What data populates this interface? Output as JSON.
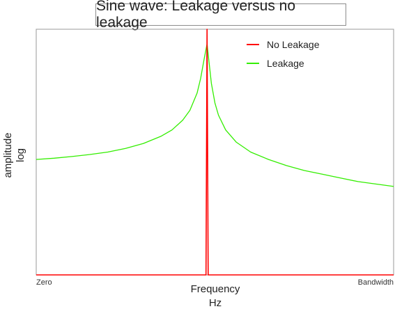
{
  "chart_data": {
    "type": "line",
    "title": "Sine wave: Leakage versus no leakage",
    "xlabel": "Frequency",
    "xlabel_unit": "Hz",
    "ylabel": "amplitude",
    "ylabel_scale": "log",
    "x_tick_labels": [
      "Zero",
      "Bandwidth"
    ],
    "xlim": [
      0,
      1
    ],
    "ylim": [
      0,
      1
    ],
    "yscale": "log",
    "grid": false,
    "legend_position": "top-right",
    "series": [
      {
        "name": "No Leakage",
        "color": "#ff0000",
        "x": [
          0,
          0.475,
          0.478,
          0.481,
          1
        ],
        "y": [
          0,
          0,
          1.0,
          0,
          0
        ]
      },
      {
        "name": "Leakage",
        "color": "#33ee00",
        "x": [
          0,
          0.05,
          0.1,
          0.15,
          0.2,
          0.25,
          0.3,
          0.35,
          0.38,
          0.41,
          0.43,
          0.45,
          0.46,
          0.47,
          0.478,
          0.49,
          0.5,
          0.51,
          0.53,
          0.56,
          0.6,
          0.65,
          0.7,
          0.75,
          0.8,
          0.85,
          0.9,
          0.95,
          1.0
        ],
        "y": [
          0.47,
          0.475,
          0.482,
          0.49,
          0.5,
          0.515,
          0.535,
          0.565,
          0.59,
          0.63,
          0.67,
          0.74,
          0.8,
          0.88,
          0.94,
          0.78,
          0.7,
          0.65,
          0.59,
          0.54,
          0.5,
          0.47,
          0.445,
          0.425,
          0.41,
          0.395,
          0.38,
          0.37,
          0.36
        ]
      }
    ]
  }
}
